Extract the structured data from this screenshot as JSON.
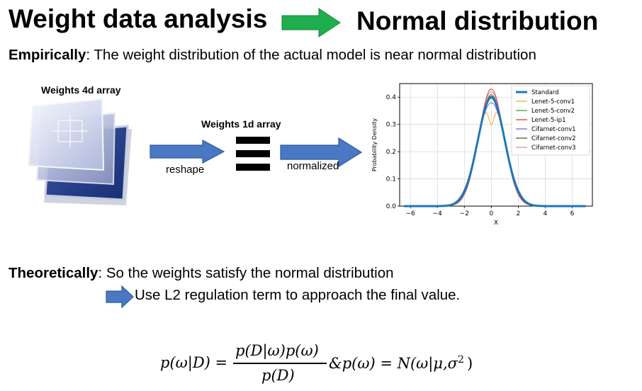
{
  "header": {
    "title_left": "Weight data analysis",
    "title_right": "Normal distribution",
    "arrow_color": "#1fae4e"
  },
  "empirical": {
    "label": "Empirically",
    "text": ": The weight distribution of the actual model is near normal distribution"
  },
  "pipeline": {
    "array4d_label": "Weights 4d array",
    "array1d_label": "Weights 1d array",
    "reshape_label": "reshape",
    "normalized_label": "normalized",
    "arrow_color": "#4a78c2"
  },
  "chart_data": {
    "type": "line",
    "xlabel": "X",
    "ylabel": "Probability Density",
    "xlim": [
      -6.8,
      7.5
    ],
    "ylim": [
      0,
      0.45
    ],
    "x_ticks": [
      -6,
      -4,
      -2,
      0,
      2,
      4,
      6
    ],
    "y_ticks": [
      0.0,
      0.1,
      0.2,
      0.3,
      0.4
    ],
    "grid": true,
    "legend_position": "top-right",
    "series": [
      {
        "name": "Standard",
        "color": "#1f77b4",
        "mu": 0,
        "sigma": 1.0,
        "peak": 0.399
      },
      {
        "name": "Lenet-5-conv1",
        "color": "#ff9f1c",
        "mu": 0,
        "sigma": 1.02,
        "peak": 0.3,
        "bimodal": true
      },
      {
        "name": "Lenet-5-conv2",
        "color": "#2ca02c",
        "mu": 0,
        "sigma": 0.97,
        "peak": 0.41
      },
      {
        "name": "Lenet-5-ip1",
        "color": "#d62728",
        "mu": 0,
        "sigma": 0.93,
        "peak": 0.43
      },
      {
        "name": "Cifarnet-conv1",
        "color": "#6a5acd",
        "mu": 0,
        "sigma": 1.05,
        "peak": 0.38
      },
      {
        "name": "Cifarnet-conv2",
        "color": "#5c3c28",
        "mu": 0,
        "sigma": 0.98,
        "peak": 0.405
      },
      {
        "name": "Cifarnet-conv3",
        "color": "#e377c2",
        "mu": 0,
        "sigma": 0.95,
        "peak": 0.42
      }
    ]
  },
  "theoretical": {
    "label": "Theoretically",
    "text": ": So the weights satisfy the normal distribution",
    "sub_text": "Use L2 regulation term to approach the final value."
  },
  "equation": {
    "lhs": "p(ω|D) =",
    "numerator": "p(D|ω)p(ω)",
    "denominator": "p(D)",
    "rhs": "&p(ω) = N(ω|μ,σ",
    "sup": "2",
    "close": ")"
  }
}
